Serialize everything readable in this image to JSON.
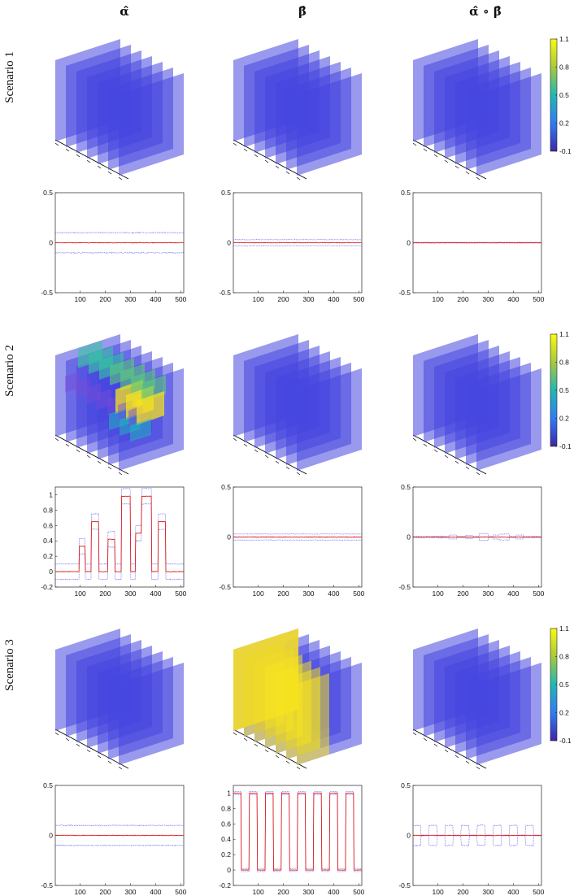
{
  "columns": [
    "α̂",
    "β̂",
    "α̂ ∘ β̂"
  ],
  "scenarios": [
    "Scenario 1",
    "Scenario 2",
    "Scenario 3"
  ],
  "colorbar": {
    "ticks": [
      "1.1",
      "0.8",
      "0.5",
      "0.2",
      "-0.1"
    ],
    "range": [
      -0.1,
      1.1
    ],
    "low_color": "#3b2fd6",
    "high_color": "#f5e31f"
  },
  "chart_data": [
    {
      "type": "line",
      "row": 1,
      "col": 1,
      "xlim": [
        1,
        512
      ],
      "ylim": [
        -0.5,
        0.5
      ],
      "yticks": [
        "0.5",
        "0",
        "-0.5"
      ],
      "xticks": [
        "100",
        "200",
        "300",
        "400",
        "500"
      ],
      "estimate": {
        "pattern": "flat",
        "level": 0
      },
      "band": {
        "half_width": 0.1
      }
    },
    {
      "type": "line",
      "row": 1,
      "col": 2,
      "xlim": [
        1,
        512
      ],
      "ylim": [
        -0.5,
        0.5
      ],
      "yticks": [
        "0.5",
        "0",
        "-0.5"
      ],
      "xticks": [
        "100",
        "200",
        "300",
        "400",
        "500"
      ],
      "estimate": {
        "pattern": "flat",
        "level": 0
      },
      "band": {
        "half_width": 0.03
      }
    },
    {
      "type": "line",
      "row": 1,
      "col": 3,
      "xlim": [
        1,
        512
      ],
      "ylim": [
        -0.5,
        0.5
      ],
      "yticks": [
        "0.5",
        "0",
        "-0.5"
      ],
      "xticks": [
        "100",
        "200",
        "300",
        "400",
        "500"
      ],
      "estimate": {
        "pattern": "flat",
        "level": 0
      },
      "band": {
        "half_width": 0.003
      }
    },
    {
      "type": "line",
      "row": 2,
      "col": 1,
      "xlim": [
        1,
        512
      ],
      "ylim": [
        -0.2,
        1.1
      ],
      "yticks": [
        "1",
        "0.8",
        "0.6",
        "0.4",
        "0.2",
        "0",
        "-0.2"
      ],
      "xticks": [
        "100",
        "200",
        "300",
        "400",
        "500"
      ],
      "estimate": {
        "pattern": "pulses",
        "pulses": [
          [
            96,
            120,
            0.33
          ],
          [
            145,
            175,
            0.65
          ],
          [
            210,
            238,
            0.42
          ],
          [
            265,
            300,
            0.98
          ],
          [
            320,
            345,
            0.5
          ],
          [
            345,
            385,
            0.98
          ],
          [
            410,
            440,
            0.65
          ]
        ]
      },
      "band": {
        "half_width": 0.1
      }
    },
    {
      "type": "line",
      "row": 2,
      "col": 2,
      "xlim": [
        1,
        512
      ],
      "ylim": [
        -0.5,
        0.5
      ],
      "yticks": [
        "0.5",
        "0",
        "-0.5"
      ],
      "xticks": [
        "100",
        "200",
        "300",
        "400",
        "500"
      ],
      "estimate": {
        "pattern": "flat",
        "level": 0
      },
      "band": {
        "half_width": 0.03
      }
    },
    {
      "type": "line",
      "row": 2,
      "col": 3,
      "xlim": [
        1,
        512
      ],
      "ylim": [
        -0.5,
        0.5
      ],
      "yticks": [
        "0.5",
        "0",
        "-0.5"
      ],
      "xticks": [
        "100",
        "200",
        "300",
        "400",
        "500"
      ],
      "estimate": {
        "pattern": "flat",
        "level": 0
      },
      "band": {
        "half_width": 0.005,
        "bumps": [
          [
            96,
            120,
            0.01
          ],
          [
            145,
            175,
            0.02
          ],
          [
            210,
            238,
            0.015
          ],
          [
            265,
            300,
            0.035
          ],
          [
            320,
            345,
            0.02
          ],
          [
            345,
            385,
            0.03
          ],
          [
            410,
            440,
            0.02
          ]
        ]
      }
    },
    {
      "type": "line",
      "row": 3,
      "col": 1,
      "xlim": [
        1,
        512
      ],
      "ylim": [
        -0.5,
        0.5
      ],
      "yticks": [
        "0.5",
        "0",
        "-0.5"
      ],
      "xticks": [
        "100",
        "200",
        "300",
        "400",
        "500"
      ],
      "estimate": {
        "pattern": "flat",
        "level": 0
      },
      "band": {
        "half_width": 0.1
      }
    },
    {
      "type": "line",
      "row": 3,
      "col": 2,
      "xlim": [
        1,
        512
      ],
      "ylim": [
        -0.2,
        1.1
      ],
      "yticks": [
        "1",
        "0.8",
        "0.6",
        "0.4",
        "0.2",
        "0",
        "-0.2"
      ],
      "xticks": [
        "100",
        "200",
        "300",
        "400",
        "500"
      ],
      "estimate": {
        "pattern": "pulses",
        "pulses": [
          [
            1,
            32,
            1
          ],
          [
            64,
            96,
            1
          ],
          [
            128,
            160,
            1
          ],
          [
            192,
            224,
            1
          ],
          [
            256,
            288,
            1
          ],
          [
            320,
            352,
            1
          ],
          [
            384,
            416,
            1
          ],
          [
            448,
            480,
            1
          ]
        ]
      },
      "band": {
        "half_width": 0.02
      }
    },
    {
      "type": "line",
      "row": 3,
      "col": 3,
      "xlim": [
        1,
        512
      ],
      "ylim": [
        -0.5,
        0.5
      ],
      "yticks": [
        "0.5",
        "0",
        "-0.5"
      ],
      "xticks": [
        "100",
        "200",
        "300",
        "400",
        "500"
      ],
      "estimate": {
        "pattern": "flat",
        "level": 0
      },
      "band": {
        "half_width": 0.003,
        "bumps": [
          [
            1,
            32,
            0.1
          ],
          [
            64,
            96,
            0.1
          ],
          [
            128,
            160,
            0.1
          ],
          [
            192,
            224,
            0.1
          ],
          [
            256,
            288,
            0.1
          ],
          [
            320,
            352,
            0.1
          ],
          [
            384,
            416,
            0.1
          ],
          [
            448,
            480,
            0.1
          ]
        ]
      }
    }
  ],
  "volumes": [
    {
      "row": 1,
      "col": 1,
      "highlight": "none"
    },
    {
      "row": 1,
      "col": 2,
      "highlight": "none"
    },
    {
      "row": 1,
      "col": 3,
      "highlight": "none"
    },
    {
      "row": 2,
      "col": 1,
      "highlight": "blocks"
    },
    {
      "row": 2,
      "col": 2,
      "highlight": "none"
    },
    {
      "row": 2,
      "col": 3,
      "highlight": "none"
    },
    {
      "row": 3,
      "col": 1,
      "highlight": "none"
    },
    {
      "row": 3,
      "col": 2,
      "highlight": "half"
    },
    {
      "row": 3,
      "col": 3,
      "highlight": "none"
    }
  ]
}
